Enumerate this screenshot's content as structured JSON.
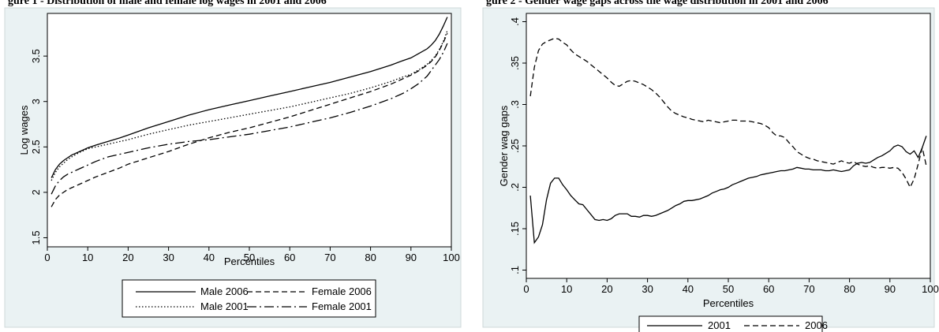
{
  "header_fragments": [
    {
      "text": "gure 1 - Distribution of male and female log wages in 2001 and 2006"
    },
    {
      "text": "gure 2 - Gender wage gaps across the wage distribution in 2001 and 2006"
    }
  ],
  "chart_data": [
    {
      "type": "line",
      "title": "",
      "xlabel": "Percentiles",
      "ylabel": "Log wages",
      "xlim": [
        0,
        100
      ],
      "ylim": [
        1.4,
        3.97
      ],
      "xticks": [
        "0",
        "10",
        "20",
        "30",
        "40",
        "50",
        "60",
        "70",
        "80",
        "90",
        "100"
      ],
      "xtick_values": [
        0,
        10,
        20,
        30,
        40,
        50,
        60,
        70,
        80,
        90,
        100
      ],
      "yticks": [
        "1.5",
        "2",
        "2.5",
        "3",
        "3.5"
      ],
      "ytick_values": [
        1.5,
        2,
        2.5,
        3,
        3.5
      ],
      "grid": false,
      "legend_position": "bottom",
      "x": [
        1,
        2,
        3,
        4,
        5,
        6,
        8,
        10,
        12,
        15,
        18,
        20,
        25,
        30,
        35,
        40,
        45,
        50,
        55,
        60,
        65,
        70,
        75,
        80,
        85,
        88,
        90,
        92,
        94,
        95,
        96,
        97,
        98,
        99
      ],
      "series": [
        {
          "name": "Male 2006",
          "style": "solid",
          "values": [
            2.16,
            2.25,
            2.31,
            2.35,
            2.38,
            2.41,
            2.45,
            2.49,
            2.52,
            2.56,
            2.6,
            2.63,
            2.71,
            2.78,
            2.85,
            2.91,
            2.96,
            3.01,
            3.06,
            3.11,
            3.16,
            3.21,
            3.27,
            3.33,
            3.4,
            3.45,
            3.48,
            3.53,
            3.58,
            3.62,
            3.67,
            3.74,
            3.83,
            3.93
          ]
        },
        {
          "name": "Male 2001",
          "style": "dotted",
          "values": [
            2.13,
            2.22,
            2.28,
            2.32,
            2.36,
            2.39,
            2.44,
            2.48,
            2.5,
            2.53,
            2.56,
            2.58,
            2.64,
            2.69,
            2.74,
            2.78,
            2.82,
            2.86,
            2.9,
            2.94,
            2.99,
            3.04,
            3.09,
            3.15,
            3.22,
            3.27,
            3.3,
            3.35,
            3.41,
            3.45,
            3.5,
            3.57,
            3.66,
            3.78
          ]
        },
        {
          "name": "Female 2006",
          "style": "dashed",
          "values": [
            1.84,
            1.92,
            1.97,
            2.0,
            2.03,
            2.05,
            2.09,
            2.13,
            2.17,
            2.22,
            2.27,
            2.31,
            2.38,
            2.45,
            2.53,
            2.6,
            2.66,
            2.71,
            2.77,
            2.83,
            2.9,
            2.97,
            3.04,
            3.11,
            3.19,
            3.25,
            3.29,
            3.34,
            3.4,
            3.44,
            3.49,
            3.56,
            3.65,
            3.75
          ]
        },
        {
          "name": "Female 2001",
          "style": "dashdot",
          "values": [
            1.98,
            2.07,
            2.13,
            2.17,
            2.2,
            2.22,
            2.26,
            2.3,
            2.34,
            2.39,
            2.42,
            2.44,
            2.49,
            2.53,
            2.56,
            2.58,
            2.61,
            2.64,
            2.68,
            2.72,
            2.77,
            2.82,
            2.88,
            2.95,
            3.03,
            3.09,
            3.14,
            3.2,
            3.28,
            3.34,
            3.4,
            3.46,
            3.54,
            3.64
          ]
        }
      ]
    },
    {
      "type": "line",
      "title": "",
      "xlabel": "Percentiles",
      "ylabel": "Gender wag gaps",
      "xlim": [
        0,
        100
      ],
      "ylim": [
        0.09,
        0.41
      ],
      "xticks": [
        "0",
        "10",
        "20",
        "30",
        "40",
        "50",
        "60",
        "70",
        "80",
        "90",
        "100"
      ],
      "xtick_values": [
        0,
        10,
        20,
        30,
        40,
        50,
        60,
        70,
        80,
        90,
        100
      ],
      "yticks": [
        ".1",
        ".15",
        ".2",
        ".25",
        ".3",
        ".35",
        ".4"
      ],
      "ytick_values": [
        0.1,
        0.15,
        0.2,
        0.25,
        0.3,
        0.35,
        0.4
      ],
      "grid": false,
      "legend_position": "bottom",
      "x": [
        1,
        2,
        3,
        4,
        5,
        6,
        7,
        8,
        9,
        10,
        11,
        12,
        13,
        14,
        15,
        16,
        17,
        18,
        19,
        20,
        21,
        22,
        23,
        24,
        25,
        26,
        27,
        28,
        29,
        30,
        31,
        32,
        33,
        34,
        35,
        36,
        37,
        38,
        39,
        40,
        41,
        42,
        43,
        44,
        45,
        46,
        47,
        48,
        49,
        50,
        51,
        52,
        53,
        54,
        55,
        56,
        57,
        58,
        59,
        60,
        61,
        62,
        63,
        64,
        65,
        66,
        67,
        68,
        69,
        70,
        71,
        72,
        73,
        74,
        75,
        76,
        77,
        78,
        79,
        80,
        81,
        82,
        83,
        84,
        85,
        86,
        87,
        88,
        89,
        90,
        91,
        92,
        93,
        94,
        95,
        96,
        97,
        98,
        99
      ],
      "series": [
        {
          "name": "2001",
          "style": "solid",
          "values": [
            0.19,
            0.133,
            0.14,
            0.155,
            0.185,
            0.205,
            0.211,
            0.211,
            0.203,
            0.197,
            0.19,
            0.185,
            0.18,
            0.179,
            0.173,
            0.167,
            0.161,
            0.16,
            0.161,
            0.16,
            0.162,
            0.166,
            0.168,
            0.168,
            0.168,
            0.165,
            0.165,
            0.164,
            0.166,
            0.166,
            0.165,
            0.166,
            0.168,
            0.17,
            0.172,
            0.175,
            0.178,
            0.18,
            0.183,
            0.184,
            0.184,
            0.185,
            0.186,
            0.188,
            0.19,
            0.193,
            0.195,
            0.197,
            0.198,
            0.2,
            0.203,
            0.205,
            0.207,
            0.209,
            0.211,
            0.212,
            0.213,
            0.215,
            0.216,
            0.217,
            0.218,
            0.219,
            0.22,
            0.22,
            0.221,
            0.222,
            0.224,
            0.223,
            0.222,
            0.222,
            0.221,
            0.221,
            0.221,
            0.22,
            0.22,
            0.221,
            0.22,
            0.219,
            0.22,
            0.221,
            0.226,
            0.229,
            0.23,
            0.229,
            0.23,
            0.233,
            0.236,
            0.238,
            0.241,
            0.244,
            0.249,
            0.251,
            0.249,
            0.243,
            0.24,
            0.244,
            0.236,
            0.248,
            0.262
          ]
        },
        {
          "name": "2006",
          "style": "dashed",
          "values": [
            0.31,
            0.345,
            0.365,
            0.373,
            0.376,
            0.378,
            0.38,
            0.379,
            0.375,
            0.372,
            0.366,
            0.361,
            0.358,
            0.355,
            0.352,
            0.348,
            0.344,
            0.34,
            0.336,
            0.332,
            0.327,
            0.323,
            0.322,
            0.325,
            0.328,
            0.329,
            0.328,
            0.326,
            0.324,
            0.321,
            0.318,
            0.314,
            0.309,
            0.303,
            0.297,
            0.292,
            0.289,
            0.287,
            0.285,
            0.284,
            0.282,
            0.281,
            0.28,
            0.279,
            0.281,
            0.28,
            0.279,
            0.278,
            0.279,
            0.28,
            0.281,
            0.281,
            0.28,
            0.28,
            0.28,
            0.279,
            0.278,
            0.277,
            0.275,
            0.272,
            0.266,
            0.262,
            0.262,
            0.26,
            0.254,
            0.249,
            0.243,
            0.24,
            0.237,
            0.235,
            0.234,
            0.232,
            0.231,
            0.23,
            0.229,
            0.228,
            0.23,
            0.232,
            0.23,
            0.229,
            0.231,
            0.228,
            0.226,
            0.225,
            0.226,
            0.224,
            0.223,
            0.224,
            0.224,
            0.223,
            0.224,
            0.223,
            0.218,
            0.21,
            0.2,
            0.21,
            0.228,
            0.248,
            0.226
          ]
        }
      ]
    }
  ]
}
